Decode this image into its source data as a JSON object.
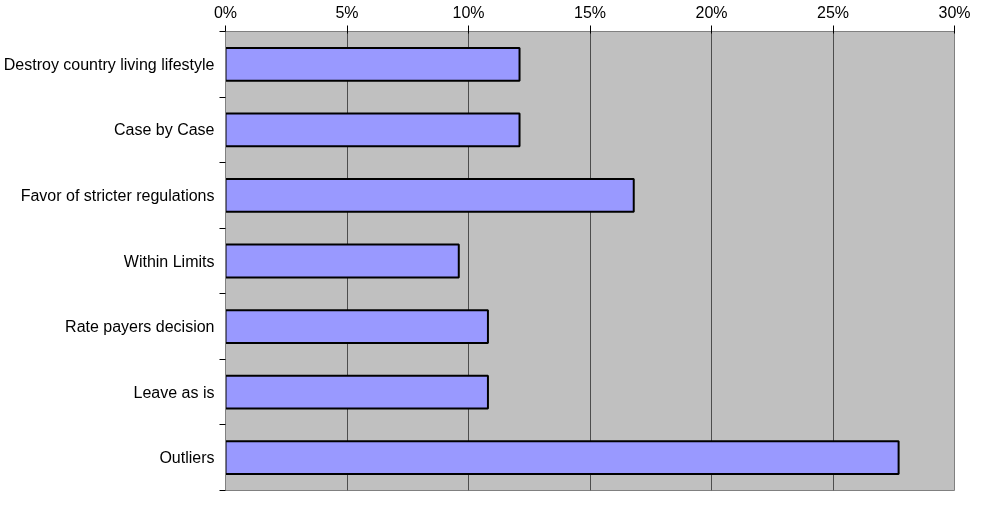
{
  "chart_data": {
    "type": "bar",
    "orientation": "horizontal",
    "categories": [
      "Destroy country living lifestyle",
      "Case by Case",
      "Favor of stricter regulations",
      "Within Limits",
      "Rate payers decision",
      "Leave as is",
      "Outliers"
    ],
    "values": [
      12.1,
      12.1,
      16.8,
      9.6,
      10.8,
      10.8,
      27.7
    ],
    "color": "#9999ff",
    "xlim": [
      0,
      30
    ],
    "xticks": [
      {
        "value": 0,
        "label": "0%"
      },
      {
        "value": 5,
        "label": "5%"
      },
      {
        "value": 10,
        "label": "10%"
      },
      {
        "value": 15,
        "label": "15%"
      },
      {
        "value": 20,
        "label": "20%"
      },
      {
        "value": 25,
        "label": "25%"
      },
      {
        "value": 30,
        "label": "30%"
      }
    ],
    "grid": "x"
  }
}
